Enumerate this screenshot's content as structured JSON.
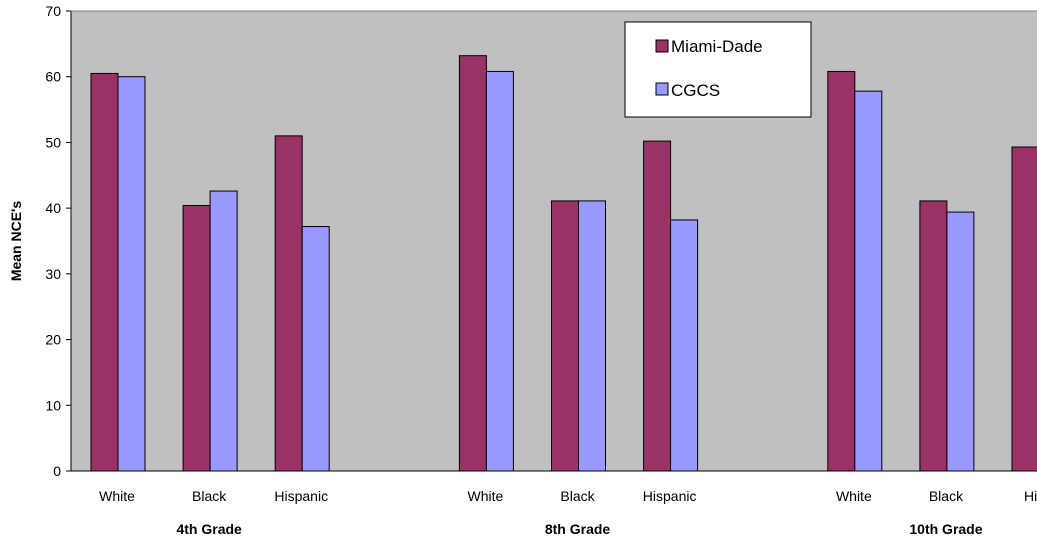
{
  "chart_data": {
    "type": "bar",
    "title": "",
    "ylabel": "Mean NCE's",
    "xlabel": "",
    "ylim": [
      0,
      70
    ],
    "yticks": [
      0,
      10,
      20,
      30,
      40,
      50,
      60,
      70
    ],
    "grid": false,
    "legend": "top-right-inside",
    "groups": [
      {
        "label": "4th Grade",
        "categories": [
          "White",
          "Black",
          "Hispanic"
        ]
      },
      {
        "label": "8th Grade",
        "categories": [
          "White",
          "Black",
          "Hispanic"
        ]
      },
      {
        "label": "10th Grade",
        "categories": [
          "White",
          "Black",
          "Hisp"
        ]
      }
    ],
    "series": [
      {
        "name": "Miami-Dade",
        "color": "#993366",
        "values": [
          60.5,
          40.4,
          51.0,
          63.2,
          41.1,
          50.2,
          60.8,
          41.1,
          49.3
        ]
      },
      {
        "name": "CGCS",
        "color": "#9999ff",
        "values": [
          60.0,
          42.6,
          37.2,
          60.8,
          41.1,
          38.2,
          57.8,
          39.4,
          null
        ]
      }
    ],
    "plot_background": "#c0c0c0"
  }
}
